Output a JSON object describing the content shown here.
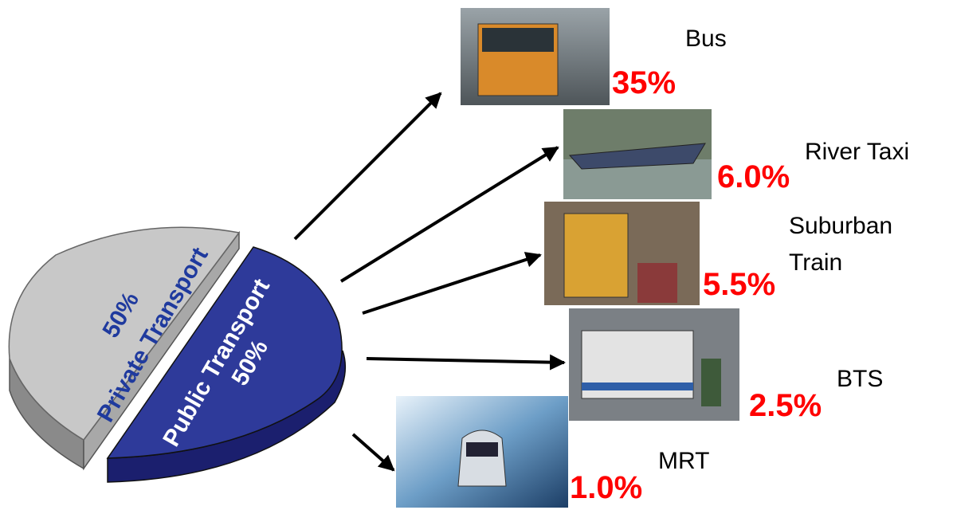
{
  "pie": {
    "slices": [
      {
        "share": "50%",
        "label": "Private Transport"
      },
      {
        "label": "Public Transport",
        "share": "50%"
      }
    ]
  },
  "modes": [
    {
      "name": [
        "Bus"
      ],
      "share": "35%"
    },
    {
      "name": [
        "River Taxi"
      ],
      "share": "6.0%"
    },
    {
      "name": [
        "Suburban",
        "Train"
      ],
      "share": "5.5%"
    },
    {
      "name": [
        "BTS"
      ],
      "share": "2.5%"
    },
    {
      "name": [
        "MRT"
      ],
      "share": "1.0%"
    }
  ]
}
